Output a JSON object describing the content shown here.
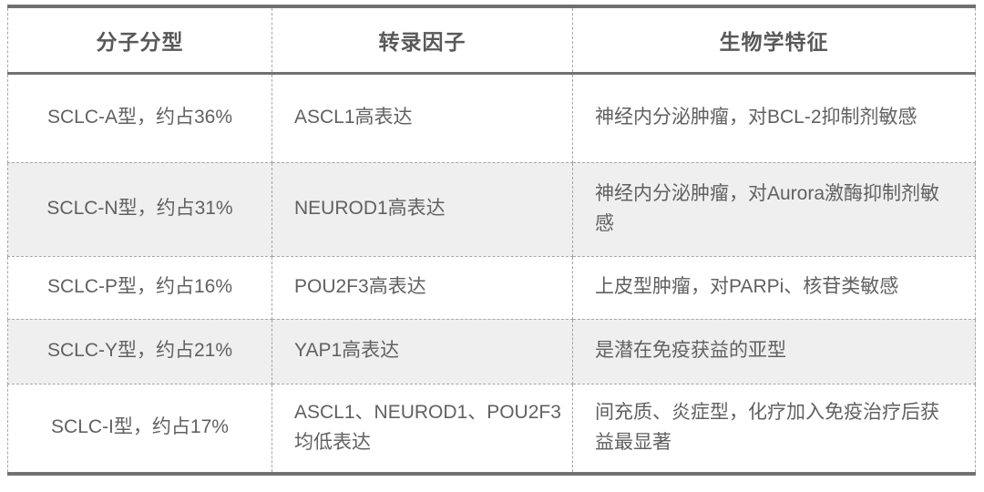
{
  "chart_data": {
    "type": "table",
    "title": "",
    "columns": [
      "分子分型",
      "转录因子",
      "生物学特征"
    ],
    "rows": [
      [
        "SCLC-A型，约占36%",
        "ASCL1高表达",
        "神经内分泌肿瘤，对BCL-2抑制剂敏感"
      ],
      [
        "SCLC-N型，约占31%",
        "NEUROD1高表达",
        "神经内分泌肿瘤，对Aurora激酶抑制剂敏感"
      ],
      [
        "SCLC-P型，约占16%",
        "POU2F3高表达",
        "上皮型肿瘤，对PARPi、核苷类敏感"
      ],
      [
        "SCLC-Y型，约占21%",
        "YAP1高表达",
        "是潜在免疫获益的亚型"
      ],
      [
        "SCLC-I型，约占17%",
        "ASCL1、NEUROD1、POU2F3均低表达",
        "间充质、炎症型，化疗加入免疫治疗后获益最显著"
      ]
    ],
    "layout": {
      "striped_row_indices": [
        1,
        3
      ],
      "header_align": "center",
      "col_align": [
        "center",
        "left",
        "left"
      ]
    },
    "colors": {
      "body_text": "#616161",
      "header_text": "#595959",
      "stripe_background": "#efefef",
      "solid_border": "#717171",
      "dashed_border": "#a6a6a6",
      "background": "#ffffff"
    }
  }
}
